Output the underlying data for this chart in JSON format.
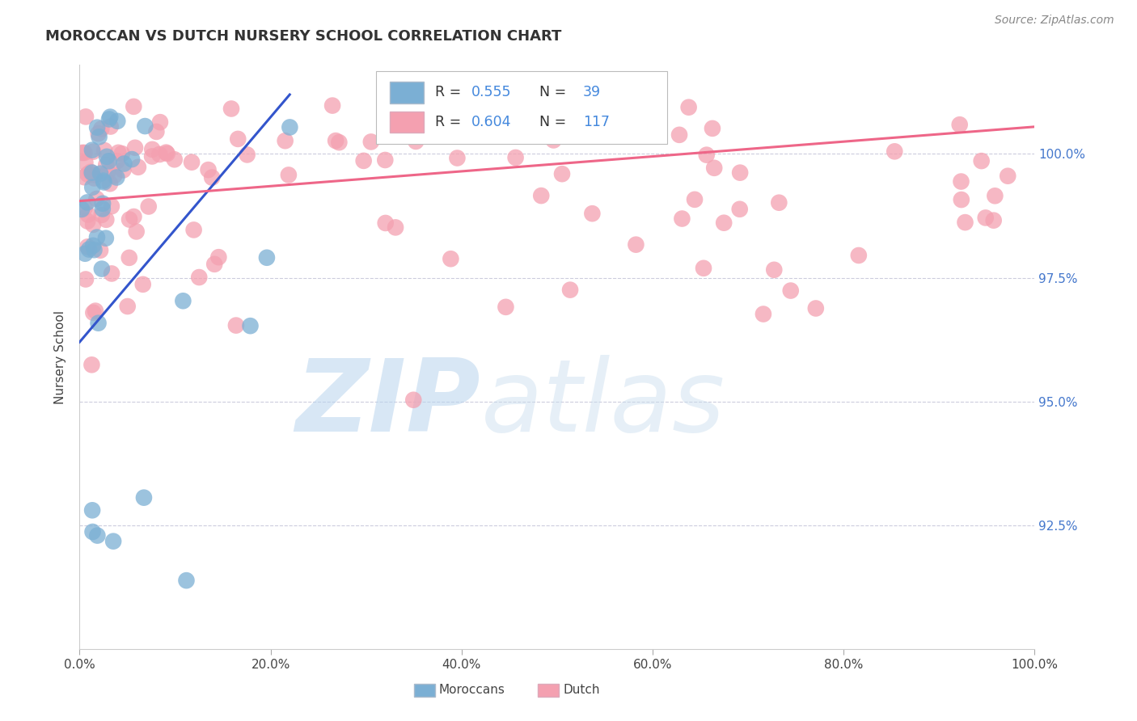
{
  "title": "MOROCCAN VS DUTCH NURSERY SCHOOL CORRELATION CHART",
  "source_text": "Source: ZipAtlas.com",
  "ylabel": "Nursery School",
  "legend_label_moroccan": "Moroccans",
  "legend_label_dutch": "Dutch",
  "moroccan_R": 0.555,
  "moroccan_N": 39,
  "dutch_R": 0.604,
  "dutch_N": 117,
  "moroccan_color": "#7BAFD4",
  "dutch_color": "#F4A0B0",
  "moroccan_line_color": "#3355CC",
  "dutch_line_color": "#EE6688",
  "watermark_zip": "ZIP",
  "watermark_atlas": "atlas",
  "xlim": [
    0.0,
    100.0
  ],
  "ylim": [
    90.0,
    101.8
  ],
  "yticks": [
    92.5,
    95.0,
    97.5,
    100.0
  ],
  "xticks": [
    0.0,
    20.0,
    40.0,
    60.0,
    80.0,
    100.0
  ],
  "moroccan_line_x0": 0.0,
  "moroccan_line_y0": 96.2,
  "moroccan_line_x1": 22.0,
  "moroccan_line_y1": 101.2,
  "dutch_line_x0": 0.0,
  "dutch_line_y0": 99.05,
  "dutch_line_x1": 100.0,
  "dutch_line_y1": 100.55
}
